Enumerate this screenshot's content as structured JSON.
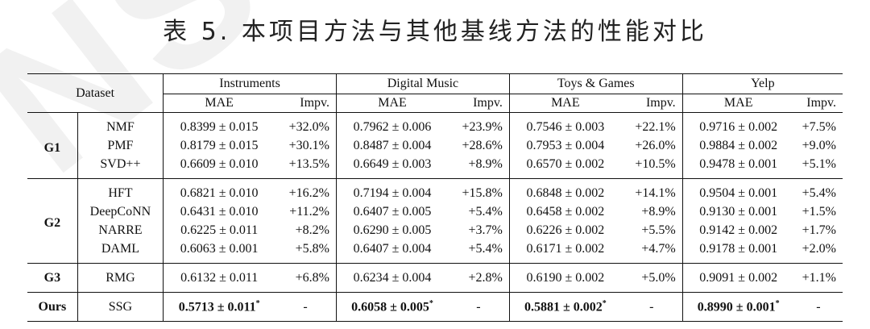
{
  "watermark": "NSF",
  "caption": "表 5. 本项目方法与其他基线方法的性能对比",
  "header": {
    "dataset_label": "Dataset",
    "datasets": [
      "Instruments",
      "Digital Music",
      "Toys & Games",
      "Yelp"
    ],
    "mae_label": "MAE",
    "impv_label": "Impv."
  },
  "groups": [
    {
      "name": "G1",
      "rows": [
        {
          "method": "NMF",
          "cells": [
            "0.8399 ± 0.015",
            "+32.0%",
            "0.7962 ± 0.006",
            "+23.9%",
            "0.7546 ± 0.003",
            "+22.1%",
            "0.9716 ± 0.002",
            "+7.5%"
          ]
        },
        {
          "method": "PMF",
          "cells": [
            "0.8179 ± 0.015",
            "+30.1%",
            "0.8487 ± 0.004",
            "+28.6%",
            "0.7953 ± 0.004",
            "+26.0%",
            "0.9884 ± 0.002",
            "+9.0%"
          ]
        },
        {
          "method": "SVD++",
          "cells": [
            "0.6609 ± 0.010",
            "+13.5%",
            "0.6649 ± 0.003",
            "+8.9%",
            "0.6570 ± 0.002",
            "+10.5%",
            "0.9478 ± 0.001",
            "+5.1%"
          ]
        }
      ]
    },
    {
      "name": "G2",
      "rows": [
        {
          "method": "HFT",
          "cells": [
            "0.6821 ± 0.010",
            "+16.2%",
            "0.7194 ± 0.004",
            "+15.8%",
            "0.6848 ± 0.002",
            "+14.1%",
            "0.9504 ± 0.001",
            "+5.4%"
          ]
        },
        {
          "method": "DeepCoNN",
          "cells": [
            "0.6431 ± 0.010",
            "+11.2%",
            "0.6407 ± 0.005",
            "+5.4%",
            "0.6458 ± 0.002",
            "+8.9%",
            "0.9130 ± 0.001",
            "+1.5%"
          ]
        },
        {
          "method": "NARRE",
          "cells": [
            "0.6225 ± 0.011",
            "+8.2%",
            "0.6290 ± 0.005",
            "+3.7%",
            "0.6226 ± 0.002",
            "+5.5%",
            "0.9142 ± 0.002",
            "+1.7%"
          ]
        },
        {
          "method": "DAML",
          "cells": [
            "0.6063 ± 0.001",
            "+5.8%",
            "0.6407 ± 0.004",
            "+5.4%",
            "0.6171 ± 0.002",
            "+4.7%",
            "0.9178 ± 0.001",
            "+2.0%"
          ]
        }
      ]
    },
    {
      "name": "G3",
      "rows": [
        {
          "method": "RMG",
          "cells": [
            "0.6132 ± 0.011",
            "+6.8%",
            "0.6234 ± 0.004",
            "+2.8%",
            "0.6190 ± 0.002",
            "+5.0%",
            "0.9091 ± 0.002",
            "+1.1%"
          ]
        }
      ]
    }
  ],
  "ours": {
    "name": "Ours",
    "method": "SSG",
    "mae": [
      "0.5713 ± 0.011",
      "0.6058 ± 0.005",
      "0.5881 ± 0.002",
      "0.8990 ± 0.001"
    ],
    "marker": "*",
    "impv": "-"
  }
}
